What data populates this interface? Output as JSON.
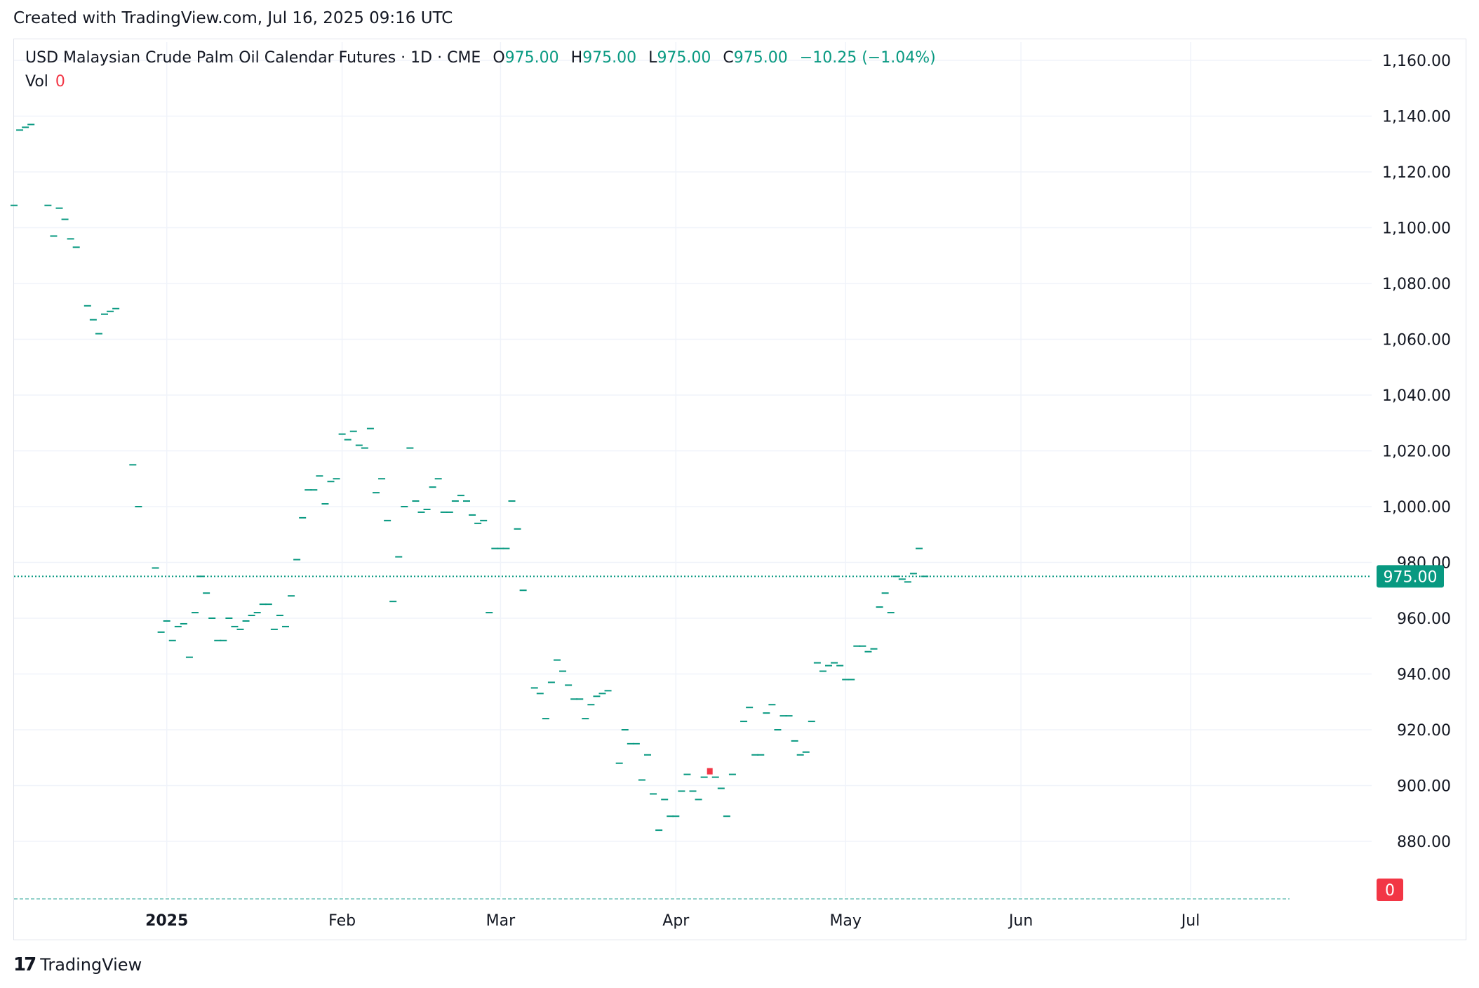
{
  "header": {
    "created": "Created with TradingView.com, Jul 16, 2025 09:16 UTC"
  },
  "legend": {
    "symbol": "USD Malaysian Crude Palm Oil Calendar Futures · 1D · CME",
    "o_label": "O",
    "o_value": "975.00",
    "h_label": "H",
    "h_value": "975.00",
    "l_label": "L",
    "l_value": "975.00",
    "c_label": "C",
    "c_value": "975.00",
    "change": "−10.25 (−1.04%)",
    "vol_label": "Vol",
    "vol_value": "0"
  },
  "footer": {
    "brand": "TradingView",
    "brand_mark": "17"
  },
  "colors": {
    "up": "#089981",
    "down": "#f23645",
    "vol_up": "#92d1ca",
    "vol_down": "#f5a7a7",
    "grid": "#f0f3fa"
  },
  "chart_data": {
    "type": "ohlc",
    "ylim": [
      860,
      1165
    ],
    "y_ticks": [
      "1,160.00",
      "1,140.00",
      "1,120.00",
      "1,100.00",
      "1,080.00",
      "1,060.00",
      "1,040.00",
      "1,020.00",
      "1,000.00",
      "980.00",
      "960.00",
      "940.00",
      "920.00",
      "900.00",
      "880.00"
    ],
    "y_tick_values": [
      1160,
      1140,
      1120,
      1100,
      1080,
      1060,
      1040,
      1020,
      1000,
      980,
      960,
      940,
      920,
      900,
      880
    ],
    "x_ticks": [
      {
        "label": "2025",
        "date": "2025-01-01",
        "bold": true
      },
      {
        "label": "Feb",
        "date": "2025-02-01",
        "bold": false
      },
      {
        "label": "Mar",
        "date": "2025-03-01",
        "bold": false
      },
      {
        "label": "Apr",
        "date": "2025-04-01",
        "bold": false
      },
      {
        "label": "May",
        "date": "2025-05-01",
        "bold": false
      },
      {
        "label": "Jun",
        "date": "2025-06-01",
        "bold": false
      },
      {
        "label": "Jul",
        "date": "2025-07-01",
        "bold": false
      }
    ],
    "x_range": [
      "2024-12-05",
      "2025-08-02"
    ],
    "last_price": 975.0,
    "last_price_label": "975.00",
    "last_volume_label": "0",
    "bars": [
      {
        "date": "2024-12-05",
        "close": 1108
      },
      {
        "date": "2024-12-06",
        "close": 1135
      },
      {
        "date": "2024-12-07",
        "close": 1136
      },
      {
        "date": "2024-12-08",
        "close": 1137
      },
      {
        "date": "2024-12-11",
        "close": 1108
      },
      {
        "date": "2024-12-12",
        "close": 1097
      },
      {
        "date": "2024-12-13",
        "close": 1107
      },
      {
        "date": "2024-12-14",
        "close": 1103
      },
      {
        "date": "2024-12-15",
        "close": 1096
      },
      {
        "date": "2024-12-16",
        "close": 1093
      },
      {
        "date": "2024-12-18",
        "close": 1072
      },
      {
        "date": "2024-12-19",
        "close": 1067
      },
      {
        "date": "2024-12-20",
        "close": 1062
      },
      {
        "date": "2024-12-21",
        "close": 1069
      },
      {
        "date": "2024-12-22",
        "close": 1070
      },
      {
        "date": "2024-12-23",
        "close": 1071
      },
      {
        "date": "2024-12-26",
        "close": 1015
      },
      {
        "date": "2024-12-27",
        "close": 1000
      },
      {
        "date": "2024-12-30",
        "close": 978
      },
      {
        "date": "2024-12-31",
        "close": 955
      },
      {
        "date": "2025-01-01",
        "close": 959
      },
      {
        "date": "2025-01-02",
        "close": 952
      },
      {
        "date": "2025-01-03",
        "close": 957
      },
      {
        "date": "2025-01-04",
        "close": 958
      },
      {
        "date": "2025-01-05",
        "close": 946
      },
      {
        "date": "2025-01-06",
        "close": 962
      },
      {
        "date": "2025-01-07",
        "close": 975
      },
      {
        "date": "2025-01-08",
        "close": 969
      },
      {
        "date": "2025-01-09",
        "close": 960
      },
      {
        "date": "2025-01-10",
        "close": 952
      },
      {
        "date": "2025-01-11",
        "close": 952
      },
      {
        "date": "2025-01-12",
        "close": 960
      },
      {
        "date": "2025-01-13",
        "close": 957
      },
      {
        "date": "2025-01-14",
        "close": 956
      },
      {
        "date": "2025-01-15",
        "close": 959
      },
      {
        "date": "2025-01-16",
        "close": 961
      },
      {
        "date": "2025-01-17",
        "close": 962
      },
      {
        "date": "2025-01-18",
        "close": 965
      },
      {
        "date": "2025-01-19",
        "close": 965
      },
      {
        "date": "2025-01-20",
        "close": 956
      },
      {
        "date": "2025-01-21",
        "close": 961
      },
      {
        "date": "2025-01-22",
        "close": 957
      },
      {
        "date": "2025-01-23",
        "close": 968
      },
      {
        "date": "2025-01-24",
        "close": 981
      },
      {
        "date": "2025-01-25",
        "close": 996
      },
      {
        "date": "2025-01-26",
        "close": 1006
      },
      {
        "date": "2025-01-27",
        "close": 1006
      },
      {
        "date": "2025-01-28",
        "close": 1011
      },
      {
        "date": "2025-01-29",
        "close": 1001
      },
      {
        "date": "2025-01-30",
        "close": 1009
      },
      {
        "date": "2025-01-31",
        "close": 1010
      },
      {
        "date": "2025-02-01",
        "close": 1026
      },
      {
        "date": "2025-02-02",
        "close": 1024
      },
      {
        "date": "2025-02-03",
        "close": 1027
      },
      {
        "date": "2025-02-04",
        "close": 1022
      },
      {
        "date": "2025-02-05",
        "close": 1021
      },
      {
        "date": "2025-02-06",
        "close": 1028
      },
      {
        "date": "2025-02-07",
        "close": 1005
      },
      {
        "date": "2025-02-08",
        "close": 1010
      },
      {
        "date": "2025-02-09",
        "close": 995
      },
      {
        "date": "2025-02-10",
        "close": 966
      },
      {
        "date": "2025-02-11",
        "close": 982
      },
      {
        "date": "2025-02-12",
        "close": 1000
      },
      {
        "date": "2025-02-13",
        "close": 1021
      },
      {
        "date": "2025-02-14",
        "close": 1002
      },
      {
        "date": "2025-02-15",
        "close": 998
      },
      {
        "date": "2025-02-16",
        "close": 999
      },
      {
        "date": "2025-02-17",
        "close": 1007
      },
      {
        "date": "2025-02-18",
        "close": 1010
      },
      {
        "date": "2025-02-19",
        "close": 998
      },
      {
        "date": "2025-02-20",
        "close": 998
      },
      {
        "date": "2025-02-21",
        "close": 1002
      },
      {
        "date": "2025-02-22",
        "close": 1004
      },
      {
        "date": "2025-02-23",
        "close": 1002
      },
      {
        "date": "2025-02-24",
        "close": 997
      },
      {
        "date": "2025-02-25",
        "close": 994
      },
      {
        "date": "2025-02-26",
        "close": 995
      },
      {
        "date": "2025-02-27",
        "close": 962
      },
      {
        "date": "2025-02-28",
        "close": 985
      },
      {
        "date": "2025-03-01",
        "close": 985
      },
      {
        "date": "2025-03-02",
        "close": 985
      },
      {
        "date": "2025-03-03",
        "close": 1002
      },
      {
        "date": "2025-03-04",
        "close": 992
      },
      {
        "date": "2025-03-05",
        "close": 970
      },
      {
        "date": "2025-03-07",
        "close": 935
      },
      {
        "date": "2025-03-08",
        "close": 933
      },
      {
        "date": "2025-03-09",
        "close": 924
      },
      {
        "date": "2025-03-10",
        "close": 937
      },
      {
        "date": "2025-03-11",
        "close": 945
      },
      {
        "date": "2025-03-12",
        "close": 941
      },
      {
        "date": "2025-03-13",
        "close": 936
      },
      {
        "date": "2025-03-14",
        "close": 931
      },
      {
        "date": "2025-03-15",
        "close": 931
      },
      {
        "date": "2025-03-16",
        "close": 924
      },
      {
        "date": "2025-03-17",
        "close": 929
      },
      {
        "date": "2025-03-18",
        "close": 932
      },
      {
        "date": "2025-03-19",
        "close": 933
      },
      {
        "date": "2025-03-20",
        "close": 934
      },
      {
        "date": "2025-03-22",
        "close": 908
      },
      {
        "date": "2025-03-23",
        "close": 920
      },
      {
        "date": "2025-03-24",
        "close": 915
      },
      {
        "date": "2025-03-25",
        "close": 915
      },
      {
        "date": "2025-03-26",
        "close": 902
      },
      {
        "date": "2025-03-27",
        "close": 911
      },
      {
        "date": "2025-03-28",
        "close": 897
      },
      {
        "date": "2025-03-29",
        "close": 884
      },
      {
        "date": "2025-03-30",
        "close": 895
      },
      {
        "date": "2025-03-31",
        "close": 889
      },
      {
        "date": "2025-04-01",
        "close": 889
      },
      {
        "date": "2025-04-02",
        "close": 898
      },
      {
        "date": "2025-04-03",
        "close": 904
      },
      {
        "date": "2025-04-04",
        "close": 898
      },
      {
        "date": "2025-04-05",
        "close": 895
      },
      {
        "date": "2025-04-06",
        "close": 903
      },
      {
        "date": "2025-04-07",
        "close": 905,
        "down": true
      },
      {
        "date": "2025-04-08",
        "close": 903
      },
      {
        "date": "2025-04-09",
        "close": 899
      },
      {
        "date": "2025-04-10",
        "close": 889
      },
      {
        "date": "2025-04-11",
        "close": 904
      },
      {
        "date": "2025-04-13",
        "close": 923
      },
      {
        "date": "2025-04-14",
        "close": 928
      },
      {
        "date": "2025-04-15",
        "close": 911
      },
      {
        "date": "2025-04-16",
        "close": 911
      },
      {
        "date": "2025-04-17",
        "close": 926
      },
      {
        "date": "2025-04-18",
        "close": 929
      },
      {
        "date": "2025-04-19",
        "close": 920
      },
      {
        "date": "2025-04-20",
        "close": 925
      },
      {
        "date": "2025-04-21",
        "close": 925
      },
      {
        "date": "2025-04-22",
        "close": 916
      },
      {
        "date": "2025-04-23",
        "close": 911
      },
      {
        "date": "2025-04-24",
        "close": 912
      },
      {
        "date": "2025-04-25",
        "close": 923
      },
      {
        "date": "2025-04-26",
        "close": 944
      },
      {
        "date": "2025-04-27",
        "close": 941
      },
      {
        "date": "2025-04-28",
        "close": 943
      },
      {
        "date": "2025-04-29",
        "close": 944
      },
      {
        "date": "2025-04-30",
        "close": 943
      },
      {
        "date": "2025-05-01",
        "close": 938
      },
      {
        "date": "2025-05-02",
        "close": 938
      },
      {
        "date": "2025-05-03",
        "close": 950
      },
      {
        "date": "2025-05-04",
        "close": 950
      },
      {
        "date": "2025-05-05",
        "close": 948
      },
      {
        "date": "2025-05-06",
        "close": 949
      },
      {
        "date": "2025-05-07",
        "close": 964
      },
      {
        "date": "2025-05-08",
        "close": 969
      },
      {
        "date": "2025-05-09",
        "close": 962
      },
      {
        "date": "2025-05-10",
        "close": 975
      },
      {
        "date": "2025-05-11",
        "close": 974
      },
      {
        "date": "2025-05-12",
        "close": 973
      },
      {
        "date": "2025-05-13",
        "close": 976
      },
      {
        "date": "2025-05-14",
        "close": 985
      },
      {
        "date": "2025-05-15",
        "close": 975
      }
    ]
  }
}
